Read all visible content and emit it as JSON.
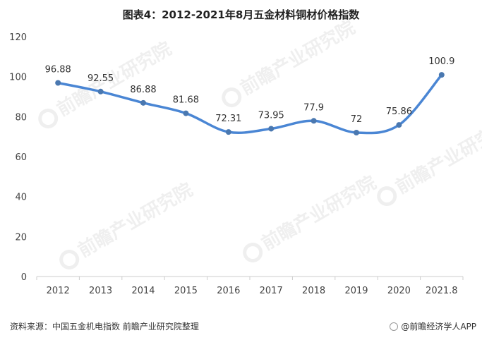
{
  "title": "图表4：2012-2021年8月五金材料铜材价格指数",
  "source": "资料来源：中国五金机电指数 前瞻产业研究院整理",
  "brand": "@前瞻经济学人APP",
  "watermark": "前瞻产业研究院",
  "colors": {
    "line": "#4a86d4",
    "point": "#4a78b0",
    "axis": "#cccccc"
  },
  "chart_data": {
    "type": "line",
    "categories": [
      "2012",
      "2013",
      "2014",
      "2015",
      "2016",
      "2017",
      "2018",
      "2019",
      "2020",
      "2021.8"
    ],
    "series": [
      {
        "values": [
          96.88,
          92.55,
          86.88,
          81.68,
          72.31,
          73.95,
          77.9,
          72,
          75.86,
          100.9
        ]
      }
    ],
    "data_labels": [
      "96.88",
      "92.55",
      "86.88",
      "81.68",
      "72.31",
      "73.95",
      "77.9",
      "72",
      "75.86",
      "100.9"
    ],
    "ylim": [
      0,
      120
    ],
    "yticks": [
      0,
      20,
      40,
      60,
      80,
      100,
      120
    ],
    "xlabel": "",
    "ylabel": "",
    "grid": false,
    "smooth": true,
    "legend": "none"
  }
}
